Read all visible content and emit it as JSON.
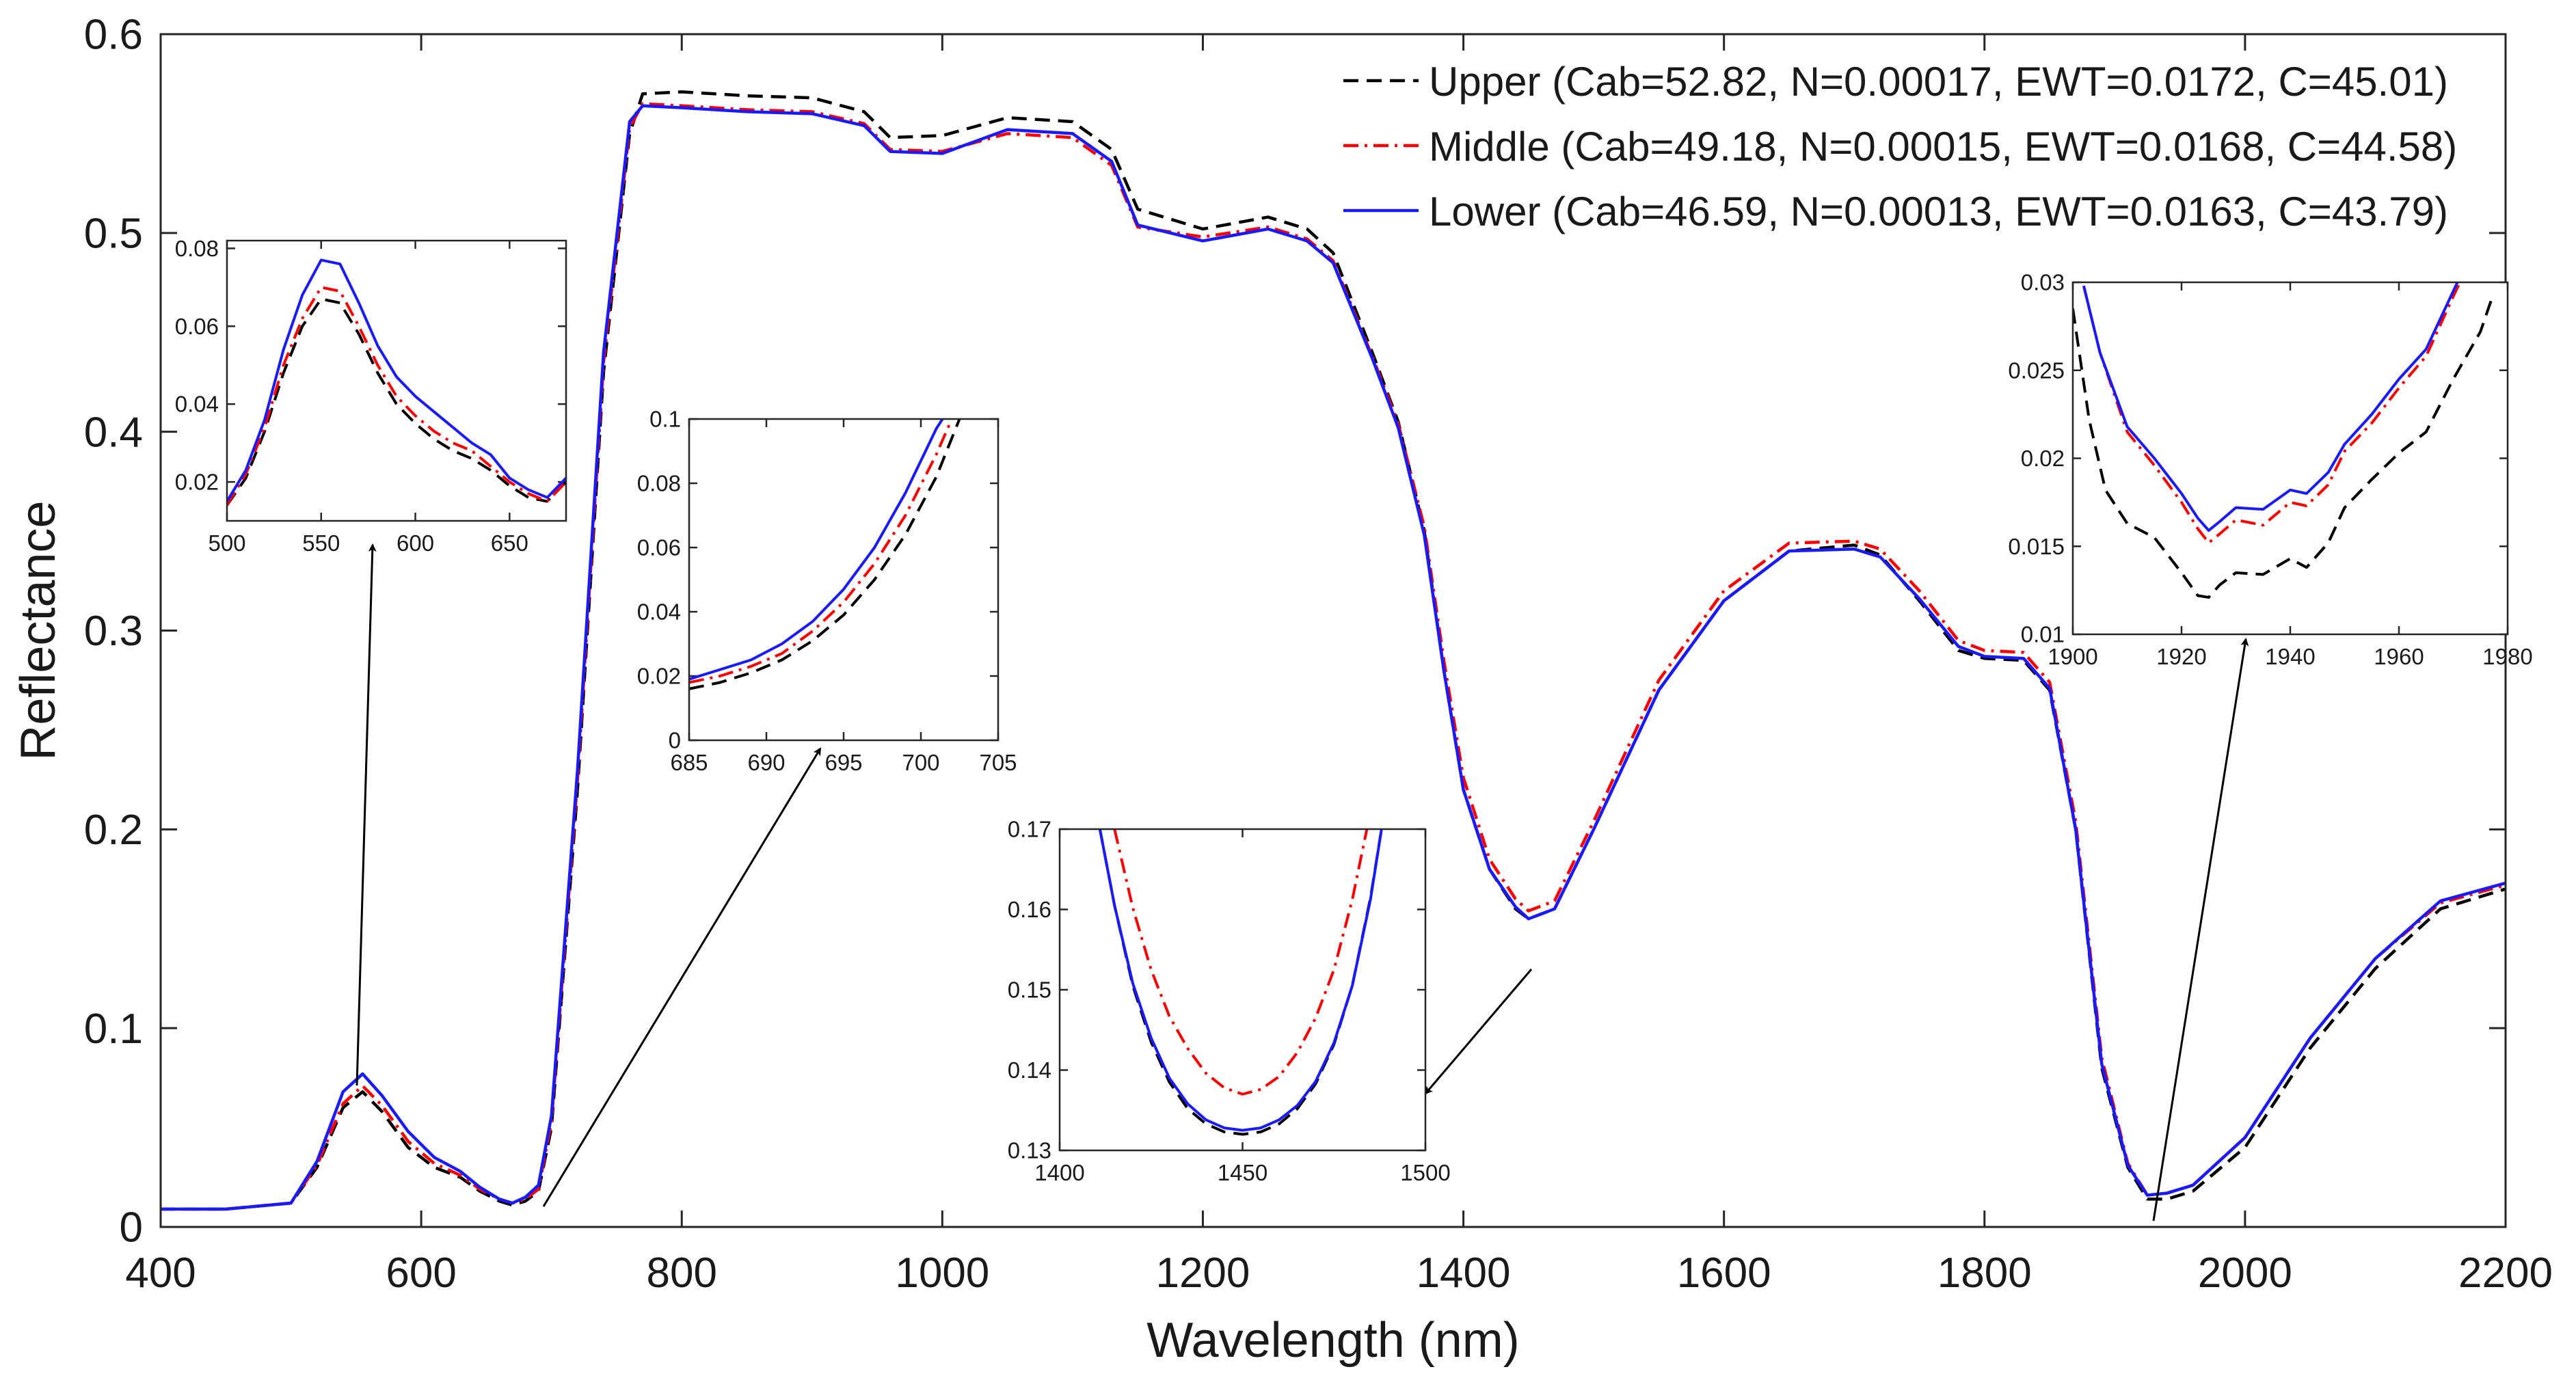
{
  "chart_data": {
    "type": "line",
    "xlabel": "Wavelength (nm)",
    "ylabel": "Reflectance",
    "xlim": [
      400,
      2200
    ],
    "ylim": [
      0,
      0.6
    ],
    "xticks": [
      400,
      600,
      800,
      1000,
      1200,
      1400,
      1600,
      1800,
      2000,
      2200
    ],
    "yticks": [
      0,
      0.1,
      0.2,
      0.3,
      0.4,
      0.5,
      0.6
    ],
    "legend_position": "top-right",
    "series": [
      {
        "name": "Upper (Cab=52.82, N=0.00017, EWT=0.0172, C=45.01)",
        "color": "#000000",
        "style": "dashed",
        "x": [
          400,
          450,
          500,
          520,
          540,
          555,
          570,
          590,
          610,
          630,
          645,
          660,
          670,
          680,
          690,
          700,
          720,
          740,
          760,
          770,
          800,
          850,
          900,
          940,
          960,
          1000,
          1050,
          1100,
          1130,
          1150,
          1200,
          1250,
          1280,
          1300,
          1330,
          1350,
          1370,
          1385,
          1400,
          1420,
          1440,
          1450,
          1470,
          1500,
          1550,
          1600,
          1650,
          1700,
          1720,
          1750,
          1780,
          1800,
          1830,
          1850,
          1870,
          1890,
          1910,
          1925,
          1940,
          1960,
          2000,
          2050,
          2100,
          2150,
          2200
        ],
        "values": [
          0.009,
          0.009,
          0.012,
          0.03,
          0.06,
          0.068,
          0.058,
          0.04,
          0.03,
          0.025,
          0.018,
          0.013,
          0.011,
          0.013,
          0.018,
          0.05,
          0.22,
          0.43,
          0.55,
          0.57,
          0.571,
          0.569,
          0.568,
          0.561,
          0.548,
          0.549,
          0.558,
          0.556,
          0.542,
          0.512,
          0.502,
          0.508,
          0.502,
          0.49,
          0.44,
          0.405,
          0.35,
          0.28,
          0.22,
          0.18,
          0.16,
          0.155,
          0.16,
          0.2,
          0.27,
          0.315,
          0.34,
          0.343,
          0.338,
          0.315,
          0.29,
          0.286,
          0.285,
          0.27,
          0.2,
          0.08,
          0.03,
          0.014,
          0.014,
          0.018,
          0.04,
          0.09,
          0.13,
          0.16,
          0.17
        ]
      },
      {
        "name": "Middle (Cab=49.18, N=0.00015, EWT=0.0168, C=44.58)",
        "color": "#ff0000",
        "style": "dashdot",
        "x": [
          400,
          450,
          500,
          520,
          540,
          555,
          570,
          590,
          610,
          630,
          645,
          660,
          670,
          680,
          690,
          700,
          720,
          740,
          760,
          770,
          800,
          850,
          900,
          940,
          960,
          1000,
          1050,
          1100,
          1130,
          1150,
          1200,
          1250,
          1280,
          1300,
          1330,
          1350,
          1370,
          1385,
          1400,
          1420,
          1440,
          1450,
          1470,
          1500,
          1550,
          1600,
          1650,
          1700,
          1720,
          1750,
          1780,
          1800,
          1830,
          1850,
          1870,
          1890,
          1910,
          1925,
          1940,
          1960,
          2000,
          2050,
          2100,
          2150,
          2200
        ],
        "values": [
          0.009,
          0.009,
          0.012,
          0.031,
          0.062,
          0.071,
          0.061,
          0.043,
          0.032,
          0.026,
          0.019,
          0.014,
          0.012,
          0.014,
          0.019,
          0.053,
          0.225,
          0.435,
          0.553,
          0.565,
          0.564,
          0.562,
          0.561,
          0.555,
          0.542,
          0.541,
          0.55,
          0.548,
          0.534,
          0.503,
          0.498,
          0.503,
          0.497,
          0.486,
          0.438,
          0.404,
          0.352,
          0.285,
          0.226,
          0.185,
          0.165,
          0.159,
          0.164,
          0.204,
          0.275,
          0.32,
          0.344,
          0.345,
          0.341,
          0.32,
          0.295,
          0.29,
          0.289,
          0.274,
          0.204,
          0.085,
          0.032,
          0.016,
          0.017,
          0.021,
          0.045,
          0.095,
          0.135,
          0.163,
          0.172
        ]
      },
      {
        "name": "Lower (Cab=46.59, N=0.00013, EWT=0.0163, C=43.79)",
        "color": "#1a1aff",
        "style": "solid",
        "x": [
          400,
          450,
          500,
          520,
          540,
          555,
          570,
          590,
          610,
          630,
          645,
          660,
          670,
          680,
          690,
          700,
          720,
          740,
          760,
          770,
          800,
          850,
          900,
          940,
          960,
          1000,
          1050,
          1100,
          1130,
          1150,
          1200,
          1250,
          1280,
          1300,
          1330,
          1350,
          1370,
          1385,
          1400,
          1420,
          1440,
          1450,
          1470,
          1500,
          1550,
          1600,
          1650,
          1700,
          1720,
          1750,
          1780,
          1800,
          1830,
          1850,
          1870,
          1890,
          1910,
          1925,
          1940,
          1960,
          2000,
          2050,
          2100,
          2150,
          2200
        ],
        "values": [
          0.009,
          0.009,
          0.012,
          0.033,
          0.068,
          0.077,
          0.066,
          0.048,
          0.035,
          0.028,
          0.02,
          0.014,
          0.012,
          0.015,
          0.021,
          0.056,
          0.23,
          0.44,
          0.556,
          0.564,
          0.563,
          0.561,
          0.56,
          0.554,
          0.541,
          0.54,
          0.552,
          0.55,
          0.536,
          0.504,
          0.496,
          0.502,
          0.496,
          0.485,
          0.437,
          0.402,
          0.348,
          0.28,
          0.22,
          0.18,
          0.161,
          0.155,
          0.16,
          0.2,
          0.27,
          0.315,
          0.34,
          0.341,
          0.337,
          0.316,
          0.292,
          0.287,
          0.286,
          0.271,
          0.2,
          0.082,
          0.031,
          0.016,
          0.017,
          0.021,
          0.045,
          0.095,
          0.135,
          0.164,
          0.173
        ]
      }
    ],
    "insets": [
      {
        "name": "inset-500-680",
        "xlim": [
          500,
          680
        ],
        "ylim": [
          0.01,
          0.082
        ],
        "xticks": [
          500,
          550,
          600,
          650
        ],
        "yticks": [
          0.02,
          0.04,
          0.06,
          0.08
        ],
        "ytick_labels": [
          "0.02",
          "0.04",
          "0.06",
          "0.08"
        ],
        "arrow_target": [
          555,
          0.075
        ],
        "series": [
          {
            "name": "Upper",
            "x": [
              500,
              510,
              520,
              530,
              540,
              550,
              560,
              570,
              580,
              590,
              600,
              610,
              620,
              630,
              640,
              650,
              660,
              670,
              680
            ],
            "values": [
              0.014,
              0.021,
              0.033,
              0.048,
              0.06,
              0.067,
              0.066,
              0.058,
              0.048,
              0.04,
              0.035,
              0.031,
              0.028,
              0.026,
              0.023,
              0.019,
              0.016,
              0.015,
              0.02
            ]
          },
          {
            "name": "Middle",
            "x": [
              500,
              510,
              520,
              530,
              540,
              550,
              560,
              570,
              580,
              590,
              600,
              610,
              620,
              630,
              640,
              650,
              660,
              670,
              680
            ],
            "values": [
              0.014,
              0.022,
              0.034,
              0.05,
              0.062,
              0.07,
              0.069,
              0.06,
              0.05,
              0.042,
              0.037,
              0.033,
              0.03,
              0.028,
              0.024,
              0.02,
              0.017,
              0.015,
              0.02
            ]
          },
          {
            "name": "Lower",
            "x": [
              500,
              510,
              520,
              530,
              540,
              550,
              560,
              570,
              580,
              590,
              600,
              610,
              620,
              630,
              640,
              650,
              660,
              670,
              680
            ],
            "values": [
              0.015,
              0.023,
              0.036,
              0.054,
              0.068,
              0.077,
              0.076,
              0.066,
              0.055,
              0.047,
              0.042,
              0.038,
              0.034,
              0.03,
              0.027,
              0.021,
              0.018,
              0.016,
              0.021
            ]
          }
        ]
      },
      {
        "name": "inset-685-705",
        "xlim": [
          685,
          705
        ],
        "ylim": [
          0,
          0.1
        ],
        "xticks": [
          685,
          690,
          695,
          700,
          705
        ],
        "yticks": [
          0,
          0.02,
          0.04,
          0.06,
          0.08,
          0.1
        ],
        "ytick_labels": [
          "0",
          "0.02",
          "0.04",
          "0.06",
          "0.08",
          "0.1"
        ],
        "arrow_target": [
          688,
          0.015
        ],
        "series": [
          {
            "name": "Upper",
            "x": [
              685,
              687,
              689,
              691,
              693,
              695,
              697,
              699,
              701,
              702.5
            ],
            "values": [
              0.016,
              0.018,
              0.021,
              0.025,
              0.031,
              0.039,
              0.05,
              0.064,
              0.082,
              0.1
            ]
          },
          {
            "name": "Middle",
            "x": [
              685,
              687,
              689,
              691,
              693,
              695,
              697,
              699,
              701,
              702
            ],
            "values": [
              0.018,
              0.02,
              0.023,
              0.027,
              0.034,
              0.043,
              0.055,
              0.07,
              0.089,
              0.1
            ]
          },
          {
            "name": "Lower",
            "x": [
              685,
              687,
              689,
              691,
              693,
              695,
              697,
              699,
              701,
              701.4
            ],
            "values": [
              0.019,
              0.022,
              0.025,
              0.03,
              0.037,
              0.047,
              0.06,
              0.077,
              0.097,
              0.1
            ]
          }
        ]
      },
      {
        "name": "inset-1400-1500",
        "xlim": [
          1400,
          1500
        ],
        "ylim": [
          0.13,
          0.17
        ],
        "xticks": [
          1400,
          1450,
          1500
        ],
        "yticks": [
          0.13,
          0.14,
          0.15,
          0.16,
          0.17
        ],
        "ytick_labels": [
          "0.13",
          "0.14",
          "0.15",
          "0.16",
          "0.17"
        ],
        "arrow_target": [
          1452,
          0.13
        ],
        "series": [
          {
            "name": "Upper",
            "x": [
              1411,
              1415,
              1420,
              1425,
              1430,
              1435,
              1440,
              1445,
              1450,
              1455,
              1460,
              1465,
              1470,
              1475,
              1480,
              1485,
              1488
            ],
            "values": [
              0.17,
              0.1605,
              0.1505,
              0.1435,
              0.1385,
              0.1352,
              0.1333,
              0.1323,
              0.132,
              0.1323,
              0.1333,
              0.1352,
              0.1383,
              0.1432,
              0.1505,
              0.1615,
              0.17
            ]
          },
          {
            "name": "Middle",
            "x": [
              1415,
              1420,
              1425,
              1430,
              1435,
              1440,
              1445,
              1450,
              1455,
              1460,
              1465,
              1470,
              1475,
              1480,
              1484
            ],
            "values": [
              0.17,
              0.1602,
              0.1525,
              0.1467,
              0.1427,
              0.1396,
              0.1378,
              0.137,
              0.1376,
              0.1392,
              0.1422,
              0.1465,
              0.1525,
              0.1612,
              0.17
            ]
          },
          {
            "name": "Lower",
            "x": [
              1411,
              1415,
              1420,
              1425,
              1430,
              1435,
              1440,
              1445,
              1450,
              1455,
              1460,
              1465,
              1470,
              1475,
              1480,
              1485,
              1488
            ],
            "values": [
              0.17,
              0.1605,
              0.1508,
              0.144,
              0.139,
              0.1358,
              0.1338,
              0.1328,
              0.1325,
              0.1328,
              0.1338,
              0.1356,
              0.1386,
              0.1434,
              0.1505,
              0.1613,
              0.17
            ]
          }
        ]
      },
      {
        "name": "inset-1900-1980",
        "xlim": [
          1900,
          1980
        ],
        "ylim": [
          0.01,
          0.03
        ],
        "xticks": [
          1900,
          1920,
          1940,
          1960,
          1980
        ],
        "yticks": [
          0.01,
          0.015,
          0.02,
          0.025,
          0.03
        ],
        "ytick_labels": [
          "0.01",
          "0.015",
          "0.02",
          "0.025",
          "0.03"
        ],
        "arrow_target": [
          1925,
          0.016
        ],
        "series": [
          {
            "name": "Upper",
            "x": [
              1900,
              1903,
              1906,
              1910,
              1915,
              1920,
              1923,
              1925,
              1927,
              1930,
              1935,
              1940,
              1943,
              1947,
              1950,
              1955,
              1960,
              1965,
              1970,
              1975,
              1977
            ],
            "values": [
              0.0285,
              0.0222,
              0.0182,
              0.0163,
              0.0155,
              0.0135,
              0.0122,
              0.0121,
              0.0128,
              0.0135,
              0.0134,
              0.0143,
              0.0138,
              0.0152,
              0.0172,
              0.0188,
              0.0203,
              0.0215,
              0.0245,
              0.0272,
              0.029
            ]
          },
          {
            "name": "Middle",
            "x": [
              1902,
              1905,
              1910,
              1915,
              1920,
              1923,
              1925,
              1927,
              1930,
              1935,
              1940,
              1943,
              1947,
              1950,
              1955,
              1960,
              1965,
              1970,
              1972
            ],
            "values": [
              0.0298,
              0.026,
              0.0215,
              0.0196,
              0.0175,
              0.016,
              0.0152,
              0.0157,
              0.0165,
              0.0162,
              0.0175,
              0.0173,
              0.0185,
              0.0204,
              0.022,
              0.024,
              0.0258,
              0.0292,
              0.0305
            ]
          },
          {
            "name": "Lower",
            "x": [
              1902,
              1905,
              1910,
              1915,
              1920,
              1923,
              1925,
              1927,
              1930,
              1935,
              1940,
              1943,
              1947,
              1950,
              1955,
              1960,
              1965,
              1970,
              1972
            ],
            "values": [
              0.0298,
              0.026,
              0.0218,
              0.02,
              0.018,
              0.0166,
              0.0159,
              0.0164,
              0.0172,
              0.0171,
              0.0182,
              0.018,
              0.0192,
              0.0208,
              0.0225,
              0.0245,
              0.0262,
              0.0295,
              0.0308
            ]
          }
        ]
      }
    ]
  }
}
